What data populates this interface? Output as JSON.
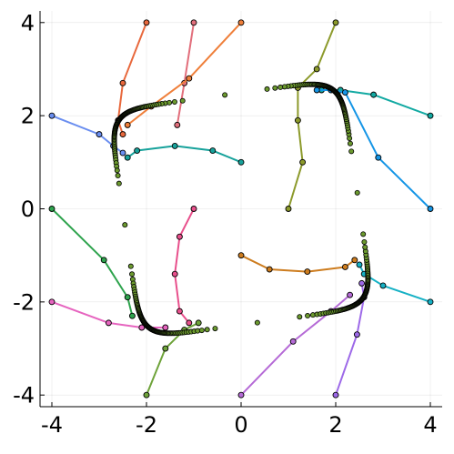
{
  "chart_data": {
    "type": "scatter",
    "title": "",
    "xlabel": "",
    "ylabel": "",
    "xlim": [
      -4.25,
      4.25
    ],
    "ylim": [
      -4.25,
      4.25
    ],
    "grid": true,
    "legend": "none",
    "x_ticks": [
      {
        "value": -4,
        "label": "-4"
      },
      {
        "value": -2,
        "label": "-2"
      },
      {
        "value": 0,
        "label": "0"
      },
      {
        "value": 2,
        "label": "2"
      },
      {
        "value": 4,
        "label": "4"
      }
    ],
    "y_ticks": [
      {
        "value": -4,
        "label": "-4"
      },
      {
        "value": -2,
        "label": "-2"
      },
      {
        "value": 0,
        "label": "0"
      },
      {
        "value": 2,
        "label": "2"
      },
      {
        "value": 4,
        "label": "4"
      }
    ],
    "series": [
      {
        "color": "#e26f7c",
        "points": [
          [
            -1.0,
            4.0
          ],
          [
            -1.2,
            2.7
          ],
          [
            -1.35,
            1.8
          ]
        ]
      },
      {
        "color": "#e8683c",
        "points": [
          [
            -2.0,
            4.0
          ],
          [
            -2.5,
            2.7
          ],
          [
            -2.6,
            1.9
          ],
          [
            -2.5,
            1.6
          ]
        ]
      },
      {
        "color": "#ef7f3a",
        "points": [
          [
            0.0,
            4.0
          ],
          [
            -1.1,
            2.8
          ],
          [
            -1.9,
            2.2
          ],
          [
            -2.4,
            1.8
          ]
        ]
      },
      {
        "color": "#6a8ef0",
        "points": [
          [
            -4.0,
            2.0
          ],
          [
            -3.0,
            1.6
          ],
          [
            -2.7,
            1.35
          ],
          [
            -2.5,
            1.2
          ]
        ]
      },
      {
        "color": "#17a29b",
        "points": [
          [
            0.0,
            1.0
          ],
          [
            -0.6,
            1.25
          ],
          [
            -1.4,
            1.35
          ],
          [
            -2.2,
            1.25
          ],
          [
            -2.4,
            1.1
          ]
        ]
      },
      {
        "color": "#8c9a2b",
        "points": [
          [
            2.0,
            4.0
          ],
          [
            1.6,
            3.0
          ],
          [
            1.2,
            2.6
          ],
          [
            1.2,
            1.9
          ],
          [
            1.3,
            1.0
          ],
          [
            1.0,
            0.0
          ]
        ]
      },
      {
        "color": "#12a9a2",
        "points": [
          [
            4.0,
            2.0
          ],
          [
            2.8,
            2.45
          ],
          [
            2.1,
            2.55
          ],
          [
            1.7,
            2.55
          ]
        ]
      },
      {
        "color": "#1495e6",
        "points": [
          [
            4.0,
            0.0
          ],
          [
            2.9,
            1.1
          ],
          [
            2.2,
            2.5
          ],
          [
            1.9,
            2.55
          ],
          [
            1.6,
            2.55
          ]
        ]
      },
      {
        "color": "#2ea34d",
        "points": [
          [
            -4.0,
            0.0
          ],
          [
            -2.9,
            -1.1
          ],
          [
            -2.4,
            -1.9
          ],
          [
            -2.3,
            -2.3
          ]
        ]
      },
      {
        "color": "#e664bf",
        "points": [
          [
            -4.0,
            -2.0
          ],
          [
            -2.8,
            -2.45
          ],
          [
            -2.1,
            -2.55
          ],
          [
            -1.6,
            -2.55
          ]
        ]
      },
      {
        "color": "#e8508c",
        "points": [
          [
            -1.0,
            0.0
          ],
          [
            -1.3,
            -0.6
          ],
          [
            -1.4,
            -1.4
          ],
          [
            -1.3,
            -2.2
          ],
          [
            -1.1,
            -2.45
          ]
        ]
      },
      {
        "color": "#6ea33a",
        "points": [
          [
            -2.0,
            -4.0
          ],
          [
            -1.6,
            -3.0
          ],
          [
            -1.2,
            -2.6
          ],
          [
            -0.9,
            -2.45
          ]
        ]
      },
      {
        "color": "#cd7c1e",
        "points": [
          [
            0.0,
            -1.0
          ],
          [
            0.6,
            -1.3
          ],
          [
            1.4,
            -1.35
          ],
          [
            2.2,
            -1.25
          ],
          [
            2.4,
            -1.1
          ]
        ]
      },
      {
        "color": "#16b1c5",
        "points": [
          [
            4.0,
            -2.0
          ],
          [
            3.0,
            -1.65
          ],
          [
            2.6,
            -1.4
          ],
          [
            2.5,
            -1.2
          ]
        ]
      },
      {
        "color": "#b56ad6",
        "points": [
          [
            0.0,
            -4.0
          ],
          [
            1.1,
            -2.85
          ],
          [
            1.9,
            -2.2
          ],
          [
            2.3,
            -1.85
          ]
        ]
      },
      {
        "color": "#9d69e8",
        "points": [
          [
            2.0,
            -4.0
          ],
          [
            2.45,
            -2.7
          ],
          [
            2.6,
            -1.9
          ],
          [
            2.55,
            -1.6
          ]
        ]
      }
    ],
    "limit_cycle": {
      "center": [
        0,
        0
      ],
      "half_width": 2.48,
      "half_height": 2.47,
      "superellipse_exponent": 8,
      "tilt_degrees": 8,
      "point_color": "#6c9a2f",
      "point_count": 360
    }
  }
}
